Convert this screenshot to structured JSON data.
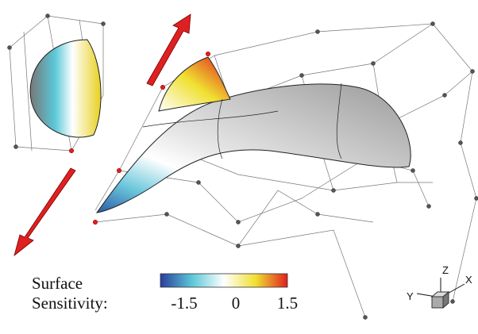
{
  "colorbar": {
    "label": [
      "Surface",
      "Sensitivity:"
    ],
    "ticks": [
      -1.5,
      0,
      1.5
    ]
  },
  "triad": {
    "z": "Z",
    "x": "X",
    "y": "Y"
  }
}
